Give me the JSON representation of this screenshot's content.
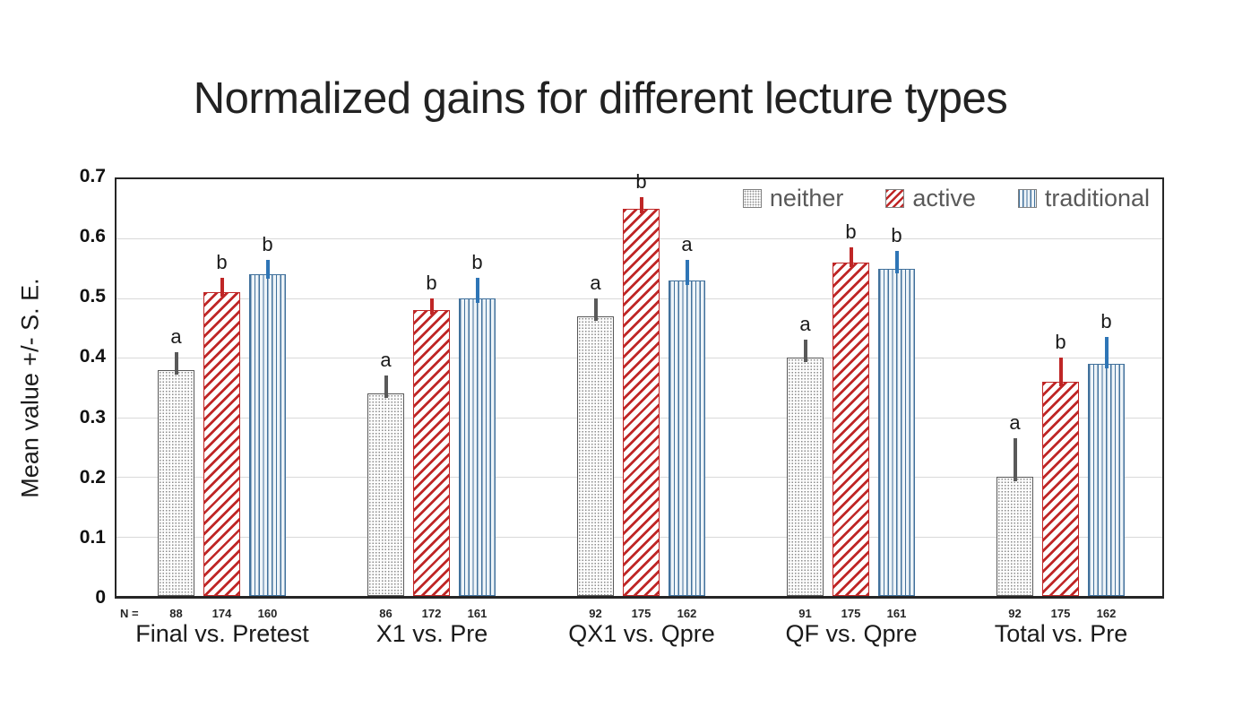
{
  "title": "Normalized gains for different lecture types",
  "n_label": "N =",
  "colors": {
    "neither_dots": "#8c8c8c",
    "neither_border": "#595959",
    "neither_error": "#595959",
    "active_red": "#bf2626",
    "traditional_blue": "#41719c",
    "traditional_error": "#2e75b6",
    "gridline": "#d9d9d9",
    "axis_border": "#262626",
    "legend_text": "#595959"
  },
  "chart_data": {
    "type": "bar",
    "title": "Normalized gains for different lecture types",
    "xlabel": "",
    "ylabel": "Mean value +/- S. E.",
    "ylim": [
      0,
      0.7
    ],
    "yticks": [
      "0.7",
      "0.6",
      "0.5",
      "0.4",
      "0.3",
      "0.2",
      "0.1",
      "0"
    ],
    "grid": true,
    "legend_position": "top-right-inside",
    "error_bars": "upper standard error whiskers",
    "categories": [
      "Final vs. Pretest",
      "X1 vs. Pre",
      "QX1 vs. Qpre",
      "QF vs. Qpre",
      "Total vs. Pre"
    ],
    "series": [
      {
        "name": "neither",
        "pattern": "dots",
        "color": "#595959",
        "error_color": "#595959",
        "values": [
          0.38,
          0.34,
          0.47,
          0.4,
          0.2
        ],
        "se": [
          0.03,
          0.03,
          0.03,
          0.03,
          0.065
        ],
        "letters": [
          "a",
          "a",
          "a",
          "a",
          "a"
        ],
        "n": [
          "88",
          "86",
          "92",
          "91",
          "92"
        ]
      },
      {
        "name": "active",
        "pattern": "diagonal-stripes",
        "color": "#bf2626",
        "error_color": "#bf2626",
        "values": [
          0.51,
          0.48,
          0.65,
          0.56,
          0.36
        ],
        "se": [
          0.025,
          0.02,
          0.02,
          0.025,
          0.04
        ],
        "letters": [
          "b",
          "b",
          "b",
          "b",
          "b"
        ],
        "n": [
          "174",
          "172",
          "175",
          "175",
          "175"
        ]
      },
      {
        "name": "traditional",
        "pattern": "vertical-stripes",
        "color": "#41719c",
        "error_color": "#2e75b6",
        "values": [
          0.54,
          0.5,
          0.53,
          0.55,
          0.39
        ],
        "se": [
          0.025,
          0.035,
          0.035,
          0.03,
          0.045
        ],
        "letters": [
          "b",
          "b",
          "a",
          "b",
          "b"
        ],
        "n": [
          "160",
          "161",
          "162",
          "161",
          "162"
        ]
      }
    ]
  }
}
